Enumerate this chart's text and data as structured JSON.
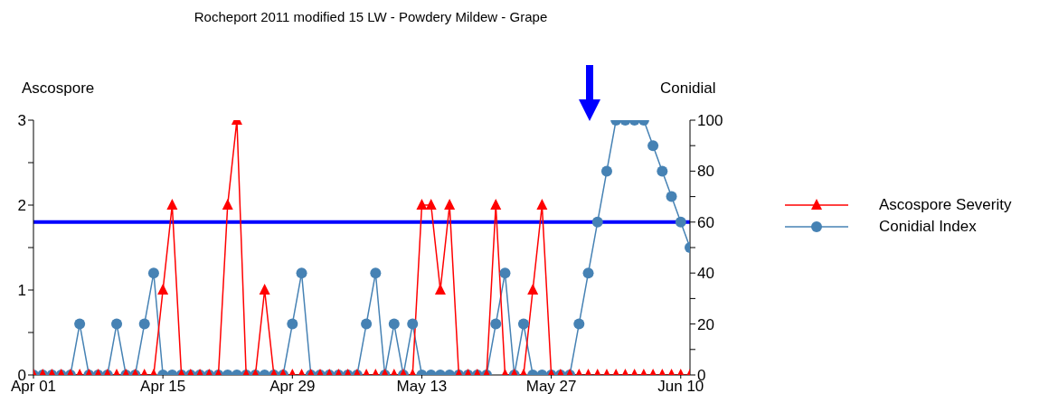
{
  "chart_data": {
    "type": "line",
    "title": "Rocheport 2011 modified 15 LW - Powdery Mildew - Grape",
    "ylabel": "Ascospore",
    "y2label": "Conidial",
    "x": [
      "--04-01",
      "--04-02",
      "--04-03",
      "--04-04",
      "--04-05",
      "--04-06",
      "--04-07",
      "--04-08",
      "--04-09",
      "--04-10",
      "--04-11",
      "--04-12",
      "--04-13",
      "--04-14",
      "--04-15",
      "--04-16",
      "--04-17",
      "--04-18",
      "--04-19",
      "--04-20",
      "--04-21",
      "--04-22",
      "--04-23",
      "--04-24",
      "--04-25",
      "--04-26",
      "--04-27",
      "--04-28",
      "--04-29",
      "--04-30",
      "--05-01",
      "--05-02",
      "--05-03",
      "--05-04",
      "--05-05",
      "--05-06",
      "--05-07",
      "--05-08",
      "--05-09",
      "--05-10",
      "--05-11",
      "--05-12",
      "--05-13",
      "--05-14",
      "--05-15",
      "--05-16",
      "--05-17",
      "--05-18",
      "--05-19",
      "--05-20",
      "--05-21",
      "--05-22",
      "--05-23",
      "--05-24",
      "--05-25",
      "--05-26",
      "--05-27",
      "--05-28",
      "--05-29",
      "--05-30",
      "--05-31",
      "--06-01",
      "--06-02",
      "--06-03",
      "--06-04",
      "--06-05",
      "--06-06",
      "--06-07",
      "--06-08",
      "--06-09",
      "--06-10",
      "--06-11"
    ],
    "series": [
      {
        "name": "Ascospore Severity",
        "color": "#ff0000",
        "marker": "triangle",
        "values": [
          0,
          0,
          0,
          0,
          0,
          0,
          0,
          0,
          0,
          0,
          0,
          0,
          0,
          0,
          1,
          2,
          0,
          0,
          0,
          0,
          0,
          2,
          3,
          0,
          0,
          1,
          0,
          0,
          0,
          0,
          0,
          0,
          0,
          0,
          0,
          0,
          0,
          0,
          0,
          0,
          0,
          0,
          2,
          2,
          1,
          2,
          0,
          0,
          0,
          0,
          2,
          0,
          0,
          0,
          1,
          2,
          0,
          0,
          0,
          0,
          0,
          0,
          0,
          0,
          0,
          0,
          0,
          0,
          0,
          0,
          0,
          0
        ]
      },
      {
        "name": "Conidial Index",
        "color": "#4682b4",
        "marker": "circle",
        "axis": "y2",
        "values": [
          0,
          0,
          0,
          0,
          0,
          20,
          0,
          0,
          0,
          20,
          0,
          0,
          20,
          40,
          0,
          0,
          0,
          0,
          0,
          0,
          0,
          0,
          0,
          0,
          0,
          0,
          0,
          0,
          20,
          40,
          0,
          0,
          0,
          0,
          0,
          0,
          20,
          40,
          0,
          20,
          0,
          20,
          0,
          0,
          0,
          0,
          0,
          0,
          0,
          0,
          20,
          40,
          0,
          20,
          0,
          0,
          0,
          0,
          0,
          20,
          40,
          60,
          80,
          100,
          100,
          100,
          100,
          90,
          80,
          70,
          60,
          50
        ]
      }
    ],
    "xlim": [
      "--04-01",
      "--06-11"
    ],
    "xticks": [
      {
        "value": "--04-01",
        "label": "Apr 01"
      },
      {
        "value": "--04-15",
        "label": "Apr 15"
      },
      {
        "value": "--04-29",
        "label": "Apr 29"
      },
      {
        "value": "--05-13",
        "label": "May 13"
      },
      {
        "value": "--05-27",
        "label": "May 27"
      },
      {
        "value": "--06-10",
        "label": "Jun 10"
      }
    ],
    "ylim": [
      0,
      3
    ],
    "yticks": [
      0,
      {
        "value": 0.5,
        "label": null
      },
      1,
      {
        "value": 1.5,
        "label": null
      },
      2,
      {
        "value": 2.5,
        "label": null
      },
      3
    ],
    "y2lim": [
      0,
      100
    ],
    "y2ticks": [
      0,
      {
        "value": 10,
        "label": null
      },
      20,
      {
        "value": 30,
        "label": null
      },
      40,
      {
        "value": 50,
        "label": null
      },
      60,
      {
        "value": 70,
        "label": null
      },
      80,
      {
        "value": 90,
        "label": null
      },
      100
    ],
    "ref_lines": [
      {
        "axis": "y2",
        "value": 60,
        "color": "#0000ff"
      }
    ],
    "grid": false,
    "legend": "right"
  }
}
